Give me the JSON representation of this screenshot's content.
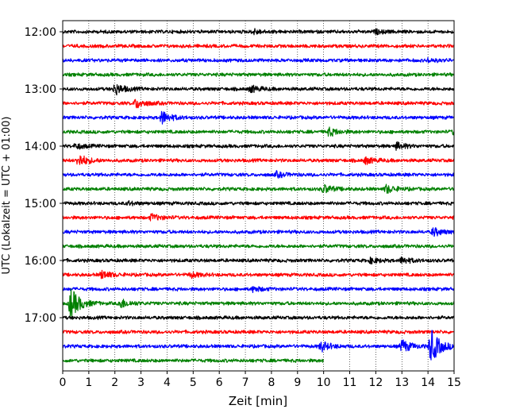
{
  "chart_data": {
    "type": "line",
    "title": "",
    "xlabel": "Zeit  [min]",
    "ylabel": "UTC (Lokalzeit = UTC + 01:00)",
    "xlim": [
      0,
      15
    ],
    "x_ticks": [
      0,
      1,
      2,
      3,
      4,
      5,
      6,
      7,
      8,
      9,
      10,
      11,
      12,
      13,
      14,
      15
    ],
    "x_tick_labels": [
      "0",
      "1",
      "2",
      "3",
      "4",
      "5",
      "6",
      "7",
      "8",
      "9",
      "10",
      "11",
      "12",
      "13",
      "14",
      "15"
    ],
    "y_tick_labels": [
      "12:00",
      "13:00",
      "14:00",
      "15:00",
      "16:00",
      "17:00"
    ],
    "x_grid": "dotted vertical lines at each minute",
    "legend": "none",
    "trace_interval_minutes": 15,
    "trace_colors": [
      "#000000",
      "#ff0000",
      "#0000ff",
      "#008000"
    ],
    "series": [
      {
        "start": "12:00",
        "color": "#000000",
        "events": [
          [
            7.3,
            3
          ],
          [
            12,
            2
          ]
        ]
      },
      {
        "start": "12:15",
        "color": "#ff0000",
        "events": []
      },
      {
        "start": "12:30",
        "color": "#0000ff",
        "events": [
          [
            14,
            2
          ]
        ]
      },
      {
        "start": "12:45",
        "color": "#008000",
        "events": []
      },
      {
        "start": "13:00",
        "color": "#000000",
        "events": [
          [
            2,
            7
          ],
          [
            7.2,
            4
          ]
        ]
      },
      {
        "start": "13:15",
        "color": "#ff0000",
        "events": [
          [
            2.8,
            6
          ]
        ]
      },
      {
        "start": "13:30",
        "color": "#0000ff",
        "events": [
          [
            3.8,
            8
          ]
        ]
      },
      {
        "start": "13:45",
        "color": "#008000",
        "events": [
          [
            10.2,
            5
          ],
          [
            15,
            4
          ]
        ]
      },
      {
        "start": "14:00",
        "color": "#000000",
        "events": [
          [
            0.5,
            3
          ],
          [
            12.8,
            4
          ]
        ]
      },
      {
        "start": "14:15",
        "color": "#ff0000",
        "events": [
          [
            0.6,
            8
          ],
          [
            11.6,
            4
          ]
        ]
      },
      {
        "start": "14:30",
        "color": "#0000ff",
        "events": [
          [
            8.2,
            3
          ]
        ]
      },
      {
        "start": "14:45",
        "color": "#008000",
        "events": [
          [
            10,
            5
          ],
          [
            12.4,
            5
          ]
        ]
      },
      {
        "start": "15:00",
        "color": "#000000",
        "events": [
          [
            2.5,
            2
          ]
        ]
      },
      {
        "start": "15:15",
        "color": "#ff0000",
        "events": [
          [
            3.4,
            4
          ]
        ]
      },
      {
        "start": "15:30",
        "color": "#0000ff",
        "events": [
          [
            14.2,
            5
          ]
        ]
      },
      {
        "start": "15:45",
        "color": "#008000",
        "events": []
      },
      {
        "start": "16:00",
        "color": "#000000",
        "events": [
          [
            13,
            4
          ],
          [
            11.8,
            3
          ]
        ]
      },
      {
        "start": "16:15",
        "color": "#ff0000",
        "events": [
          [
            1.5,
            5
          ],
          [
            4.9,
            3
          ]
        ]
      },
      {
        "start": "16:30",
        "color": "#0000ff",
        "events": [
          [
            7.3,
            3
          ]
        ]
      },
      {
        "start": "16:45",
        "color": "#008000",
        "events": [
          [
            0.3,
            20
          ],
          [
            2.2,
            6
          ]
        ]
      },
      {
        "start": "17:00",
        "color": "#000000",
        "events": []
      },
      {
        "start": "17:15",
        "color": "#ff0000",
        "events": []
      },
      {
        "start": "17:30",
        "color": "#0000ff",
        "events": [
          [
            9.9,
            6
          ],
          [
            13,
            8
          ],
          [
            14.1,
            22
          ]
        ]
      },
      {
        "start": "17:45",
        "color": "#008000",
        "events": [],
        "end_minute": 10
      }
    ]
  }
}
